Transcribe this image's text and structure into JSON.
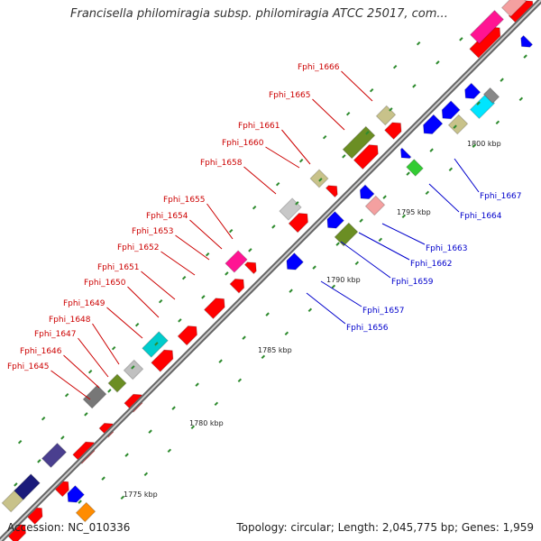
{
  "title": "Francisella philomiragia subsp. philomiragia ATCC 25017, com...",
  "accession": "Accession: NC_010336",
  "topology": "Topology: circular; Length: 2,045,775 bp; Genes: 1,959",
  "colors": {
    "forward_label": "#cc0000",
    "reverse_label": "#0000cc",
    "backbone": "#999999",
    "tick": "#2e8b2e"
  },
  "scale_ticks": [
    {
      "label": "1775 kbp",
      "kbp": 1775
    },
    {
      "label": "1780 kbp",
      "kbp": 1780
    },
    {
      "label": "1785 kbp",
      "kbp": 1785
    },
    {
      "label": "1790 kbp",
      "kbp": 1790
    },
    {
      "label": "1795 kbp",
      "kbp": 1795
    },
    {
      "label": "1800 kbp",
      "kbp": 1800
    }
  ],
  "forward_genes": [
    {
      "name": "Fphi_1645"
    },
    {
      "name": "Fphi_1646"
    },
    {
      "name": "Fphi_1647"
    },
    {
      "name": "Fphi_1648"
    },
    {
      "name": "Fphi_1649"
    },
    {
      "name": "Fphi_1650"
    },
    {
      "name": "Fphi_1651"
    },
    {
      "name": "Fphi_1652"
    },
    {
      "name": "Fphi_1653"
    },
    {
      "name": "Fphi_1654"
    },
    {
      "name": "Fphi_1655"
    },
    {
      "name": "Fphi_1658"
    },
    {
      "name": "Fphi_1660"
    },
    {
      "name": "Fphi_1661"
    },
    {
      "name": "Fphi_1665"
    },
    {
      "name": "Fphi_1666"
    }
  ],
  "reverse_genes": [
    {
      "name": "Fphi_1656"
    },
    {
      "name": "Fphi_1657"
    },
    {
      "name": "Fphi_1659"
    },
    {
      "name": "Fphi_1662"
    },
    {
      "name": "Fphi_1663"
    },
    {
      "name": "Fphi_1664"
    },
    {
      "name": "Fphi_1667"
    }
  ]
}
